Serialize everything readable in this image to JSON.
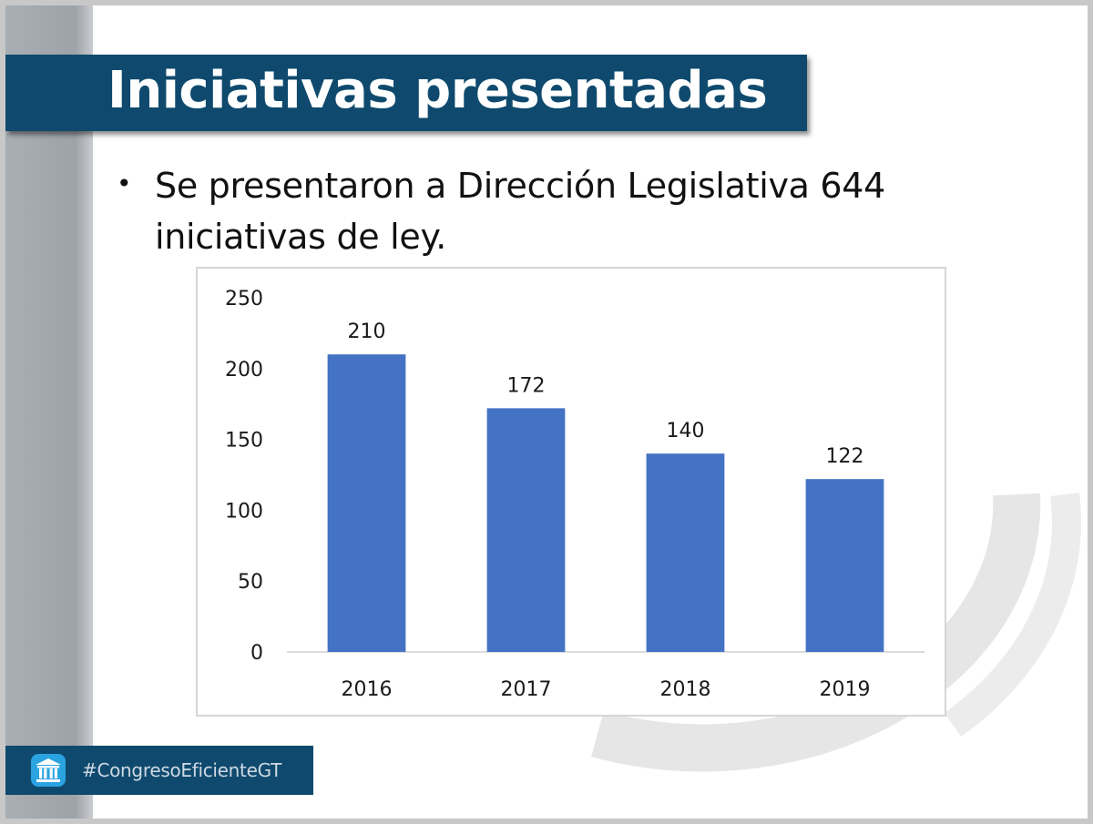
{
  "slide": {
    "title": "Iniciativas presentadas",
    "bullet_text": "Se presentaron a Dirección Legislativa 644 iniciativas de ley.",
    "hashtag": "#CongresoEficienteGT"
  },
  "colors": {
    "title_banner": "#0f4a6e",
    "bar": "#4472c4",
    "left_bar": "#a9aeb3"
  },
  "icons": {
    "footer": "congress-building-icon"
  },
  "chart_data": {
    "type": "bar",
    "title": "",
    "xlabel": "",
    "ylabel": "",
    "categories": [
      "2016",
      "2017",
      "2018",
      "2019"
    ],
    "values": [
      210,
      172,
      140,
      122
    ],
    "data_labels": [
      "210",
      "172",
      "140",
      "122"
    ],
    "ylim": [
      0,
      250
    ],
    "yticks": [
      0,
      50,
      100,
      150,
      200,
      250
    ],
    "ytick_labels": [
      "0",
      "50",
      "100",
      "150",
      "200",
      "250"
    ],
    "grid": false,
    "legend": "none"
  }
}
